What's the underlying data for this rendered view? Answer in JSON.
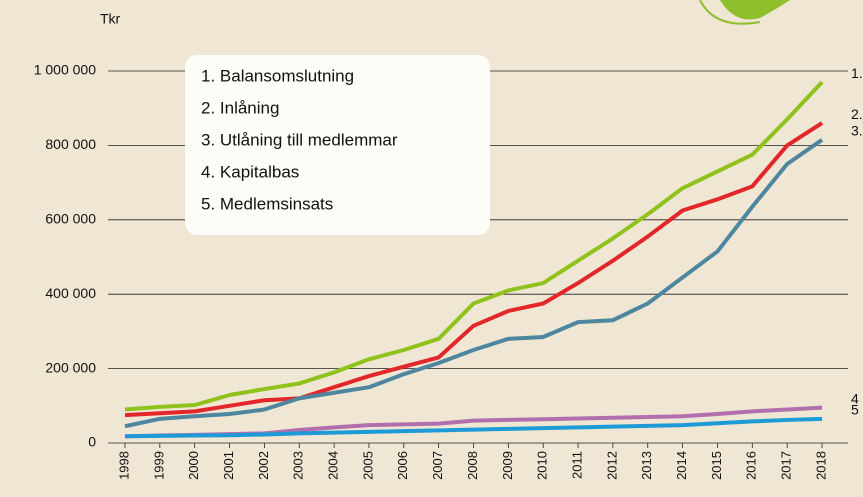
{
  "chart_data": {
    "type": "line",
    "y_label": "Tkr",
    "categories": [
      "1998",
      "1999",
      "2000",
      "2001",
      "2002",
      "2003",
      "2004",
      "2005",
      "2006",
      "2007",
      "2008",
      "2009",
      "2010",
      "2011",
      "2012",
      "2013",
      "2014",
      "2015",
      "2016",
      "2017",
      "2018"
    ],
    "ylim": [
      0,
      1000000
    ],
    "yticks": [
      0,
      {
        "value": 200000,
        "label": "200 000"
      },
      {
        "value": 400000,
        "label": "400 000"
      },
      {
        "value": 600000,
        "label": "600 000"
      },
      {
        "value": 800000,
        "label": "800 000"
      },
      {
        "value": 1000000,
        "label": "1 000 000"
      }
    ],
    "grid": true,
    "legend": "top-left",
    "series": [
      {
        "name": "1. Balansomslutning",
        "end_label": "1.",
        "color": "#8fc21a",
        "values": [
          90000,
          97000,
          102000,
          129000,
          145000,
          160000,
          190000,
          225000,
          250000,
          280000,
          375000,
          410000,
          430000,
          490000,
          550000,
          615000,
          685000,
          730000,
          775000,
          870000,
          970000
        ]
      },
      {
        "name": "2. Inlåning",
        "end_label": "2.",
        "color": "#e3262a",
        "values": [
          75000,
          80000,
          85000,
          100000,
          115000,
          120000,
          150000,
          180000,
          205000,
          230000,
          315000,
          355000,
          375000,
          430000,
          490000,
          555000,
          625000,
          655000,
          690000,
          800000,
          860000
        ]
      },
      {
        "name": "3. Utlåning till medlemmar",
        "end_label": "3.",
        "color": "#4f869f",
        "values": [
          45000,
          65000,
          72000,
          78000,
          90000,
          120000,
          135000,
          150000,
          185000,
          215000,
          250000,
          280000,
          285000,
          325000,
          330000,
          375000,
          445000,
          515000,
          635000,
          750000,
          815000
        ]
      },
      {
        "name": "4. Kapitalbas",
        "end_label": "4",
        "color": "#b26fae",
        "values": [
          18000,
          20000,
          22000,
          24000,
          26000,
          35000,
          42000,
          48000,
          50000,
          52000,
          60000,
          62000,
          64000,
          66000,
          68000,
          70000,
          72000,
          78000,
          85000,
          90000,
          95000
        ]
      },
      {
        "name": "5. Medlemsinsats",
        "end_label": "5",
        "color": "#1e9ad6",
        "values": [
          18000,
          19000,
          20000,
          21000,
          23000,
          26000,
          28000,
          30000,
          32000,
          34000,
          36000,
          38000,
          40000,
          42000,
          44000,
          46000,
          48000,
          53000,
          58000,
          62000,
          65000
        ]
      }
    ]
  }
}
